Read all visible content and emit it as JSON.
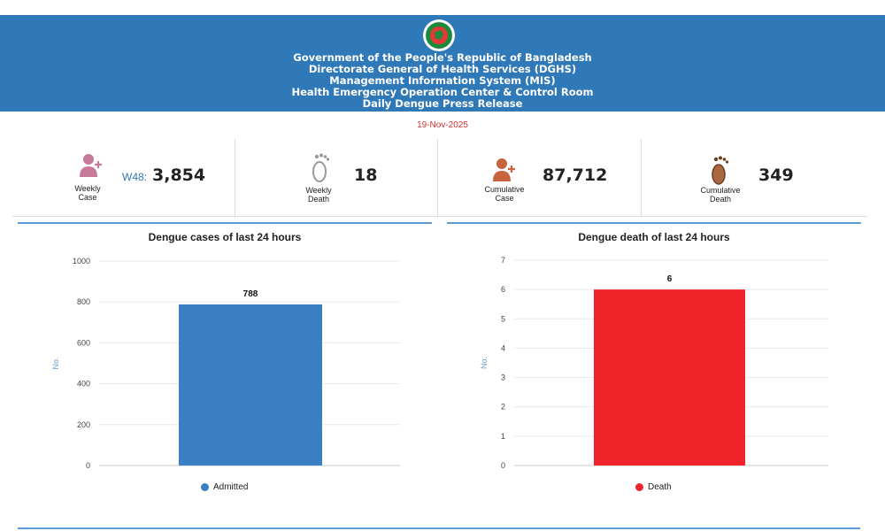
{
  "header": {
    "lines": [
      "Government of the People's Republic of Bangladesh",
      "Directorate General of Health Services (DGHS)",
      "Management Information System (MIS)",
      "Health Emergency Operation Center & Control Room",
      "Daily Dengue Press Release"
    ]
  },
  "date": "19-Nov-2025",
  "stats": {
    "weekly_case": {
      "label_line1": "Weekly",
      "label_line2": "Case",
      "prefix": "W48:",
      "value": "3,854",
      "icon": "person-add-icon"
    },
    "weekly_death": {
      "label_line1": "Weekly",
      "label_line2": "Death",
      "value": "18",
      "icon": "footprint-icon"
    },
    "cumulative_case": {
      "label_line1": "Cumulative",
      "label_line2": "Case",
      "value": "87,712",
      "icon": "person-add-icon"
    },
    "cumulative_death": {
      "label_line1": "Cumulative",
      "label_line2": "Death",
      "value": "349",
      "icon": "footprint-icon"
    }
  },
  "colors": {
    "header": "#2f79b8",
    "admitted": "#3a7fc1",
    "death": "#f0222a",
    "date": "#d32f2f"
  },
  "chart_data": [
    {
      "type": "bar",
      "title": "Dengue cases of last 24 hours",
      "categories": [
        ""
      ],
      "series": [
        {
          "name": "Admitted",
          "values": [
            788
          ]
        }
      ],
      "ylabel": "No.",
      "ylim": [
        0,
        1000
      ],
      "yticks": [
        0,
        200,
        400,
        600,
        800,
        1000
      ],
      "data_labels": [
        "788"
      ],
      "legend": "bottom",
      "grid": true
    },
    {
      "type": "bar",
      "title": "Dengue death of last 24 hours",
      "categories": [
        ""
      ],
      "series": [
        {
          "name": "Death",
          "values": [
            6
          ]
        }
      ],
      "ylabel": "No.",
      "ylim": [
        0,
        7
      ],
      "yticks": [
        0,
        1,
        2,
        3,
        4,
        5,
        6,
        7
      ],
      "data_labels": [
        "6"
      ],
      "legend": "bottom",
      "grid": true
    }
  ]
}
